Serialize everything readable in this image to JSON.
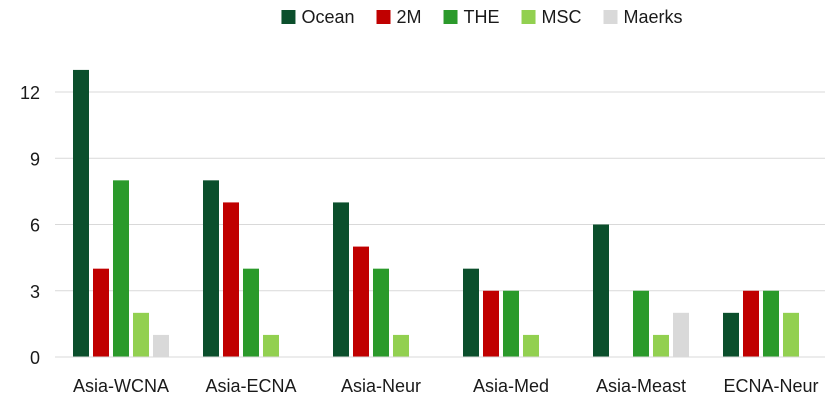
{
  "chart_data": {
    "type": "bar",
    "title": "",
    "xlabel": "",
    "ylabel": "",
    "ylim": [
      0,
      14
    ],
    "yticks": [
      0,
      3,
      6,
      9,
      12
    ],
    "grid": true,
    "legend_position": "top",
    "categories": [
      "Asia-WCNA",
      "Asia-ECNA",
      "Asia-Neur",
      "Asia-Med",
      "Asia-Meast",
      "ECNA-Neur"
    ],
    "series": [
      {
        "name": "Ocean",
        "color": "#0b4f2c",
        "values": [
          13,
          8,
          7,
          4,
          6,
          2
        ]
      },
      {
        "name": "2M",
        "color": "#c00000",
        "values": [
          4,
          7,
          5,
          3,
          0,
          3
        ]
      },
      {
        "name": "THE",
        "color": "#2b9a2b",
        "values": [
          8,
          4,
          4,
          3,
          3,
          3
        ]
      },
      {
        "name": "MSC",
        "color": "#92d050",
        "values": [
          2,
          1,
          1,
          1,
          1,
          2
        ]
      },
      {
        "name": "Maerks",
        "color": "#d9d9d9",
        "values": [
          1,
          0,
          0,
          0,
          2,
          0
        ]
      }
    ]
  }
}
